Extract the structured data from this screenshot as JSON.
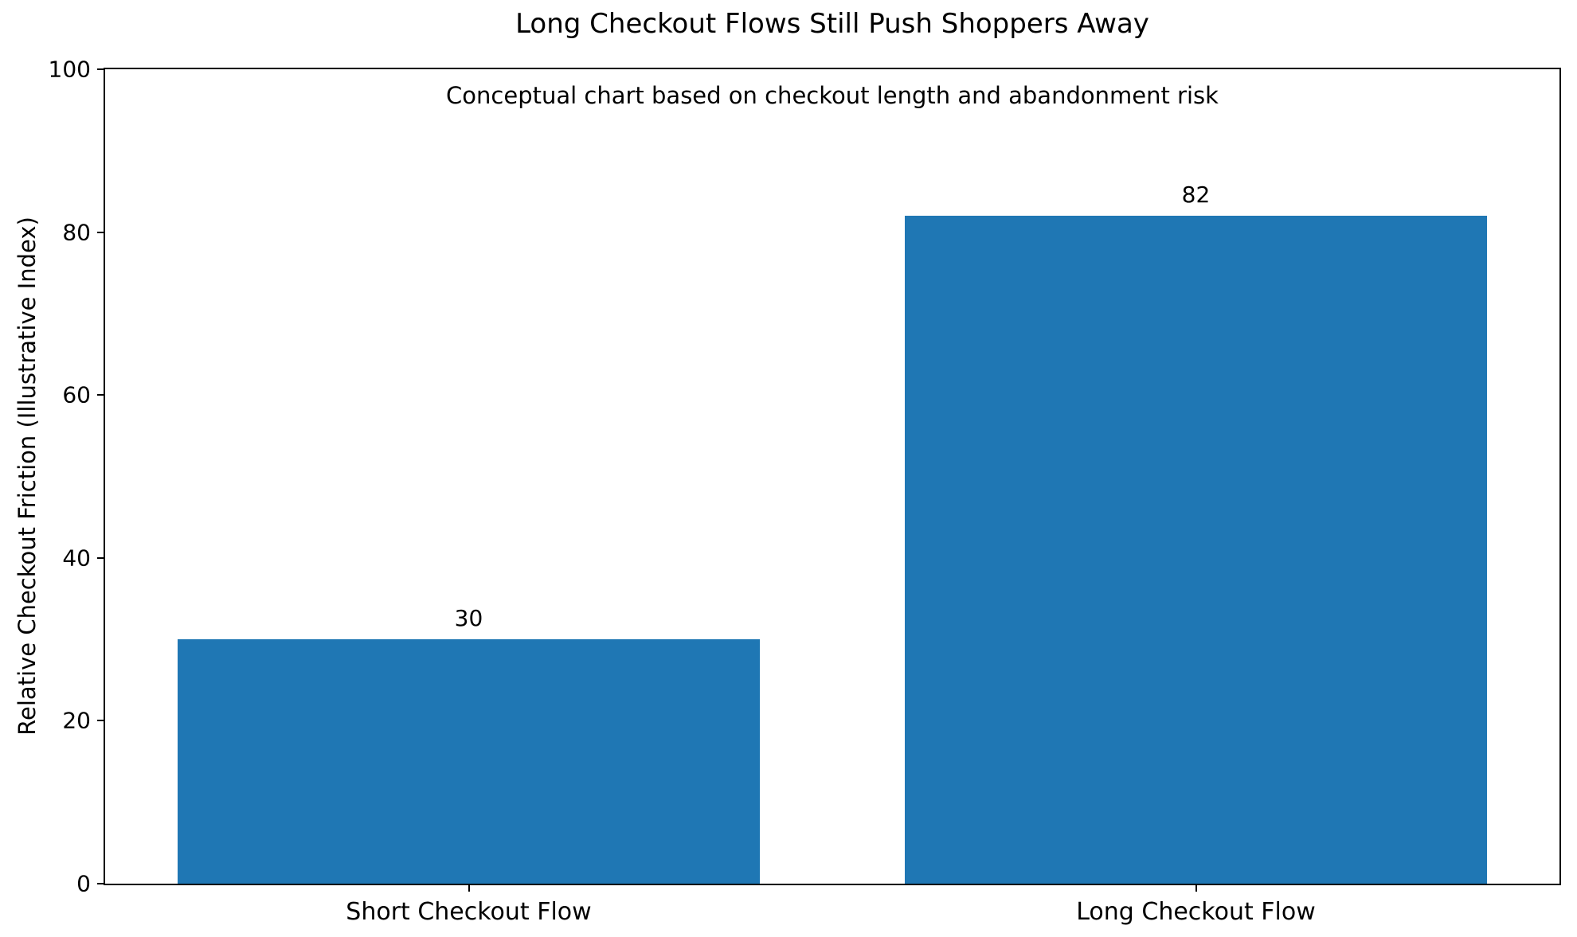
{
  "chart_data": {
    "type": "bar",
    "title": "Long Checkout Flows Still Push Shoppers Away",
    "subtitle": "Conceptual chart based on checkout length and abandonment risk",
    "ylabel": "Relative Checkout Friction (Illustrative Index)",
    "xlabel": "",
    "categories": [
      "Short Checkout Flow",
      "Long Checkout Flow"
    ],
    "values": [
      30,
      82
    ],
    "bar_labels": [
      "30",
      "82"
    ],
    "bar_color": "#1f77b4",
    "ylim": [
      0,
      100
    ],
    "yticks": [
      0,
      20,
      40,
      60,
      80,
      100
    ],
    "bar_width_fraction": 0.4,
    "grid": false,
    "legend": "none"
  }
}
